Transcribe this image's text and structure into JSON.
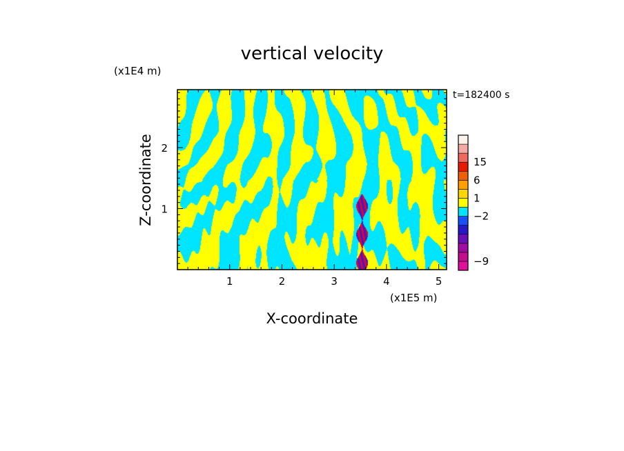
{
  "chart_data": {
    "type": "heatmap",
    "title": "vertical velocity",
    "xlabel": "X-coordinate",
    "ylabel": "Z-coordinate",
    "x_unit": "(x1E5 m)",
    "y_unit": "(x1E4 m)",
    "time_label": "t=182400 s",
    "xlim": [
      0,
      5.15
    ],
    "ylim": [
      0,
      2.95
    ],
    "x_ticks": [
      "1",
      "2",
      "3",
      "4",
      "5"
    ],
    "x_tick_values": [
      1,
      2,
      3,
      4,
      5
    ],
    "y_ticks": [
      "1",
      "2"
    ],
    "y_tick_values": [
      1,
      2
    ],
    "field_colors": {
      "positive": "#ffff00",
      "negative": "#00e5ff",
      "strong_positive": "#e8002a",
      "strong_negative": "#3a1cd0"
    },
    "colorbar": {
      "levels": [
        {
          "color": "#e0109a"
        },
        {
          "color": "#c0108e"
        },
        {
          "color": "#a00ca0"
        },
        {
          "color": "#6a10b4"
        },
        {
          "color": "#2a18c8"
        },
        {
          "color": "#1a50ff"
        },
        {
          "color": "#00e5ff"
        },
        {
          "color": "#ffff00"
        },
        {
          "color": "#ffd600"
        },
        {
          "color": "#ffa000"
        },
        {
          "color": "#f06000"
        },
        {
          "color": "#e81a00"
        },
        {
          "color": "#ee6a60"
        },
        {
          "color": "#f4aaa4"
        },
        {
          "color": "#fcf0ec"
        }
      ],
      "labels": [
        {
          "text": "15",
          "index": 12
        },
        {
          "text": "6",
          "index": 10
        },
        {
          "text": "1",
          "index": 8
        },
        {
          "text": "−2",
          "index": 6
        },
        {
          "text": "−9",
          "index": 1
        }
      ]
    }
  }
}
